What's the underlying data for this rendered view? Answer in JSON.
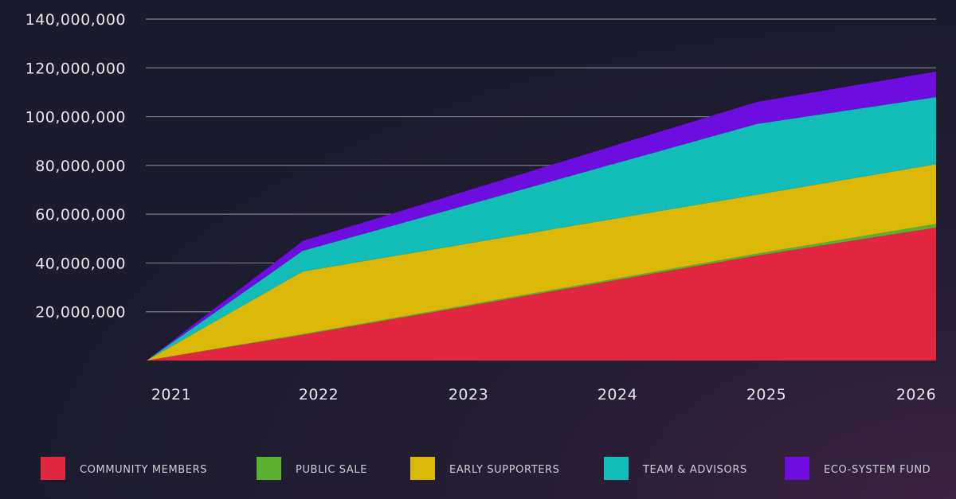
{
  "chart_data": {
    "type": "area",
    "stacked": true,
    "title": "",
    "xlabel": "",
    "ylabel": "",
    "x": [
      "2021",
      "2022",
      "2023",
      "2024",
      "2025",
      "2026"
    ],
    "ylim": [
      0,
      140000000
    ],
    "yticks": [
      20000000,
      40000000,
      60000000,
      80000000,
      100000000,
      120000000,
      140000000
    ],
    "ytick_labels": [
      "20,000,000",
      "40,000,000",
      "60,000,000",
      "80,000,000",
      "100,000,000",
      "120,000,000",
      "140,000,000"
    ],
    "grid": true,
    "legend_position": "bottom",
    "series": [
      {
        "name": "COMMUNITY MEMBERS",
        "color": "#e3263f",
        "values": [
          0,
          10500000,
          21300000,
          32200000,
          43000000,
          54500000
        ]
      },
      {
        "name": "PUBLIC SALE",
        "color": "#5bb030",
        "values": [
          0,
          300000,
          500000,
          600000,
          800000,
          1500000
        ]
      },
      {
        "name": "EARLY SUPPORTERS",
        "color": "#dbb807",
        "values": [
          0,
          25700000,
          25200000,
          24700000,
          24200000,
          24500000
        ]
      },
      {
        "name": "TEAM & ADVISORS",
        "color": "#12bdb8",
        "values": [
          0,
          8500000,
          15300000,
          22200000,
          29000000,
          27500000
        ]
      },
      {
        "name": "ECO-SYSTEM FUND",
        "color": "#6e0de0",
        "values": [
          0,
          4000000,
          5700000,
          7300000,
          9000000,
          10500000
        ]
      }
    ]
  }
}
